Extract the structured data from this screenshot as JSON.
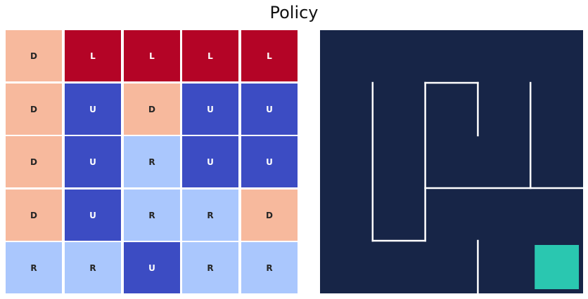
{
  "title": "Policy",
  "policy": {
    "rows": [
      [
        "D",
        "L",
        "L",
        "L",
        "L"
      ],
      [
        "D",
        "U",
        "D",
        "U",
        "U"
      ],
      [
        "D",
        "U",
        "R",
        "U",
        "U"
      ],
      [
        "D",
        "U",
        "R",
        "R",
        "D"
      ],
      [
        "R",
        "R",
        "U",
        "R",
        "R"
      ]
    ],
    "action_colors": {
      "D": "#f7b99d",
      "L": "#b40426",
      "U": "#3c4cc3",
      "R": "#aac7fd"
    },
    "text_colors": {
      "D": "#262626",
      "L": "#ffffff",
      "U": "#ffffff",
      "R": "#262626"
    }
  },
  "maze": {
    "grid_size": 5,
    "background_color": "#172547",
    "wall_color": "#ffffff",
    "goal_color": "#2ac7b0",
    "goal_cell": [
      4,
      4
    ],
    "walls": [
      {
        "type": "v",
        "x": 1,
        "y1": 1,
        "y2": 4
      },
      {
        "type": "h",
        "y": 4,
        "x1": 1,
        "x2": 2
      },
      {
        "type": "v",
        "x": 2,
        "y1": 1,
        "y2": 4
      },
      {
        "type": "h",
        "y": 1,
        "x1": 2,
        "x2": 3
      },
      {
        "type": "v",
        "x": 3,
        "y1": 1,
        "y2": 2
      },
      {
        "type": "v",
        "x": 4,
        "y1": 1,
        "y2": 3
      },
      {
        "type": "h",
        "y": 3,
        "x1": 2,
        "x2": 5
      },
      {
        "type": "v",
        "x": 3,
        "y1": 4,
        "y2": 5
      }
    ]
  }
}
